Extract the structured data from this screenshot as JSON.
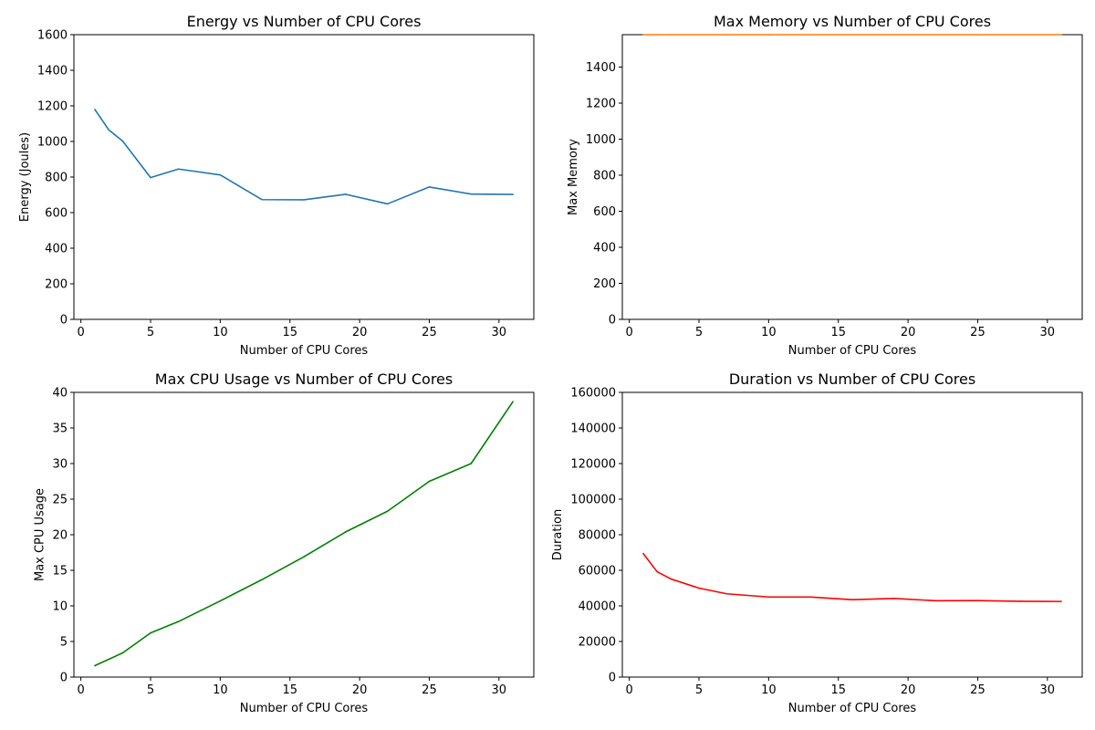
{
  "chart_data": [
    {
      "type": "line",
      "title": "Energy vs Number of CPU Cores",
      "xlabel": "Number of CPU Cores",
      "ylabel": "Energy (Joules)",
      "xlim": [
        -0.5,
        32.5
      ],
      "ylim": [
        0,
        1600
      ],
      "xticks": [
        0,
        5,
        10,
        15,
        20,
        25,
        30
      ],
      "yticks": [
        0,
        200,
        400,
        600,
        800,
        1000,
        1200,
        1400,
        1600
      ],
      "grid": false,
      "color": "#1f77b4",
      "x": [
        1,
        2,
        3,
        5,
        7,
        10,
        13,
        16,
        19,
        22,
        25,
        28,
        31
      ],
      "values": [
        1180,
        1065,
        1002,
        797,
        845,
        812,
        673,
        672,
        703,
        649,
        744,
        704,
        702
      ]
    },
    {
      "type": "line",
      "title": "Max Memory vs Number of CPU Cores",
      "xlabel": "Number of CPU Cores",
      "ylabel": "Max Memory",
      "xlim": [
        -0.5,
        32.5
      ],
      "ylim": [
        0,
        1580
      ],
      "xticks": [
        0,
        5,
        10,
        15,
        20,
        25,
        30
      ],
      "yticks": [
        0,
        200,
        400,
        600,
        800,
        1000,
        1200,
        1400
      ],
      "grid": false,
      "color": "#ff7f0e",
      "x": [
        1,
        2,
        3,
        5,
        7,
        10,
        13,
        16,
        19,
        22,
        25,
        28,
        31
      ],
      "values": [
        1580,
        1580,
        1580,
        1580,
        1580,
        1580,
        1580,
        1580,
        1580,
        1580,
        1580,
        1580,
        1580
      ]
    },
    {
      "type": "line",
      "title": "Max CPU Usage vs Number of CPU Cores",
      "xlabel": "Number of CPU Cores",
      "ylabel": "Max CPU Usage",
      "xlim": [
        -0.5,
        32.5
      ],
      "ylim": [
        0,
        40
      ],
      "xticks": [
        0,
        5,
        10,
        15,
        20,
        25,
        30
      ],
      "yticks": [
        0,
        5,
        10,
        15,
        20,
        25,
        30,
        35,
        40
      ],
      "grid": false,
      "color": "#008000",
      "x": [
        1,
        3,
        5,
        7,
        10,
        13,
        16,
        19,
        22,
        25,
        28,
        31
      ],
      "values": [
        1.6,
        3.4,
        6.2,
        7.8,
        10.7,
        13.7,
        16.9,
        20.4,
        23.3,
        27.5,
        30.0,
        38.7
      ]
    },
    {
      "type": "line",
      "title": "Duration vs Number of CPU Cores",
      "xlabel": "Number of CPU Cores",
      "ylabel": "Duration",
      "xlim": [
        -0.5,
        32.5
      ],
      "ylim": [
        0,
        160000
      ],
      "xticks": [
        0,
        5,
        10,
        15,
        20,
        25,
        30
      ],
      "yticks": [
        0,
        20000,
        40000,
        60000,
        80000,
        100000,
        120000,
        140000,
        160000
      ],
      "grid": false,
      "color": "#ff0000",
      "x": [
        1,
        2,
        3,
        5,
        7,
        10,
        13,
        16,
        19,
        22,
        25,
        28,
        31
      ],
      "values": [
        69400,
        59200,
        55100,
        50000,
        46800,
        45000,
        45000,
        43500,
        44200,
        42900,
        43000,
        42600,
        42500
      ]
    }
  ]
}
